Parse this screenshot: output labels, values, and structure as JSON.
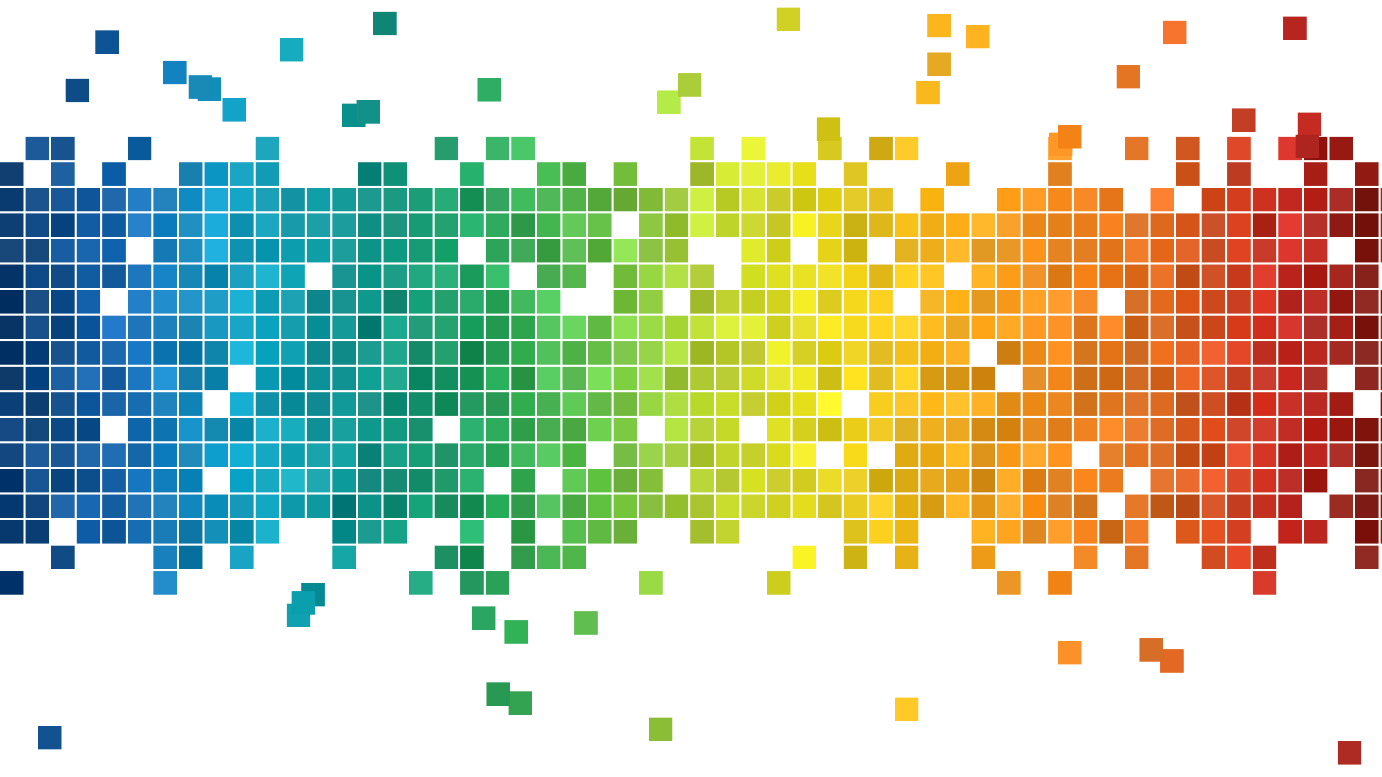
{
  "scene": {
    "description_label": "",
    "palette": {
      "dark_blue": "#0a3a6e",
      "blue": "#1a6db8",
      "cyan": "#12a2c4",
      "teal": "#0e8f8a",
      "green": "#1fa060",
      "light_green": "#5cbf4a",
      "yellow_green": "#b6d233",
      "yellow": "#e9de1f",
      "gold": "#f2b11d",
      "orange": "#f08a1e",
      "dark_orange": "#de6a22",
      "red": "#c82a22",
      "dark_red": "#7a1b14"
    },
    "background_color": "#ffffff",
    "gradient_order": [
      "dark_blue",
      "blue",
      "cyan",
      "teal",
      "green",
      "light_green",
      "yellow_green",
      "yellow",
      "gold",
      "orange",
      "dark_orange",
      "red",
      "dark_red"
    ]
  }
}
